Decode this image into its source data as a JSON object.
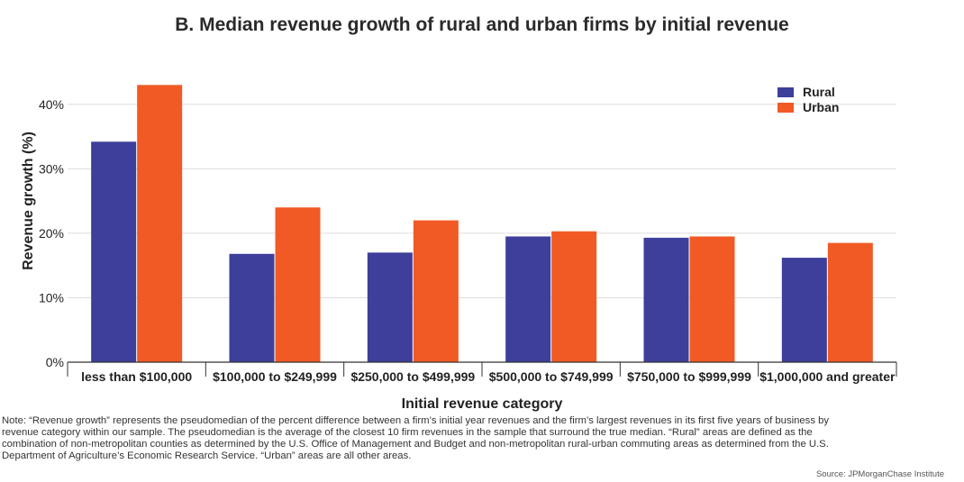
{
  "chart_data": {
    "type": "bar",
    "title": "B. Median revenue growth of rural and urban firms by initial revenue",
    "xlabel": "Initial revenue category",
    "ylabel": "Revenue growth (%)",
    "ylim": [
      0,
      45
    ],
    "yticks": [
      0,
      10,
      20,
      30,
      40
    ],
    "ytick_labels": [
      "0%",
      "10%",
      "20%",
      "30%",
      "40%"
    ],
    "grid": true,
    "legend_position": "top-right",
    "categories": [
      "less than $100,000",
      "$100,000 to $249,999",
      "$250,000 to $499,999",
      "$500,000 to $749,999",
      "$750,000 to $999,999",
      "$1,000,000 and greater"
    ],
    "series": [
      {
        "name": "Rural",
        "color": "#3d3f9a",
        "values": [
          34.2,
          16.8,
          17.0,
          19.5,
          19.3,
          16.2
        ]
      },
      {
        "name": "Urban",
        "color": "#f15a24",
        "values": [
          43.0,
          24.0,
          22.0,
          20.3,
          19.5,
          18.5
        ]
      }
    ]
  },
  "note": "Note: “Revenue growth” represents the pseudomedian of the percent difference between a firm’s initial year revenues and the firm’s largest revenues in its first five years of business by revenue category within our sample. The pseudomedian is the average of the closest 10 firm revenues in the sample that surround the true median. “Rural” areas are defined as the combination of non-metropolitan counties as determined by the U.S. Office of Management and Budget and non-metropolitan rural-urban commuting areas as determined from the U.S. Department of Agriculture’s Economic Research Service. “Urban” areas are all other areas.",
  "source": "Source: JPMorganChase Institute"
}
